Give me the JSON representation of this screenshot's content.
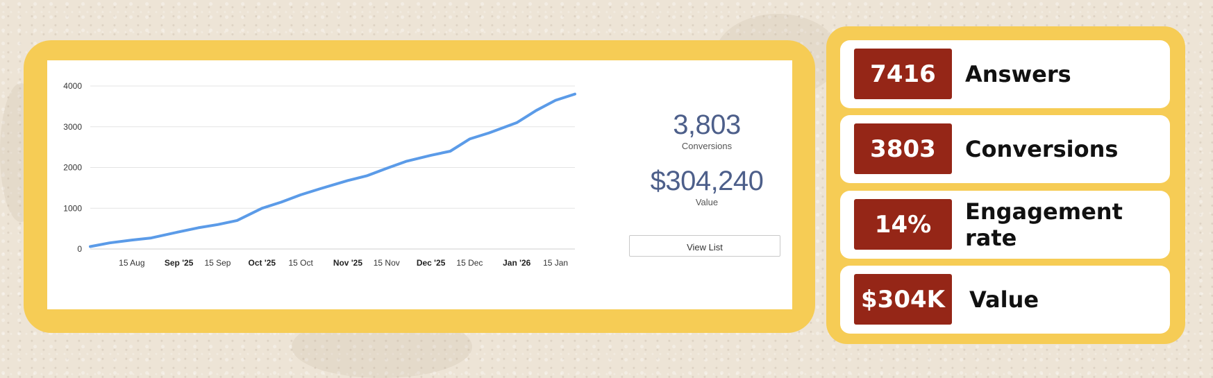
{
  "chart_data": {
    "type": "line",
    "title": "",
    "xlabel": "",
    "ylabel": "",
    "ylim": [
      0,
      4000
    ],
    "yticks": [
      "0",
      "1000",
      "2000",
      "3000",
      "4000"
    ],
    "xlim": [
      "2025-07-31",
      "2026-01-22"
    ],
    "xticks": [
      {
        "date": "2025-08-15",
        "label": "15 Aug",
        "bold": false
      },
      {
        "date": "2025-09-01",
        "label": "Sep '25",
        "bold": true
      },
      {
        "date": "2025-09-15",
        "label": "15 Sep",
        "bold": false
      },
      {
        "date": "2025-10-01",
        "label": "Oct '25",
        "bold": true
      },
      {
        "date": "2025-10-15",
        "label": "15 Oct",
        "bold": false
      },
      {
        "date": "2025-11-01",
        "label": "Nov '25",
        "bold": true
      },
      {
        "date": "2025-11-15",
        "label": "15 Nov",
        "bold": false
      },
      {
        "date": "2025-12-01",
        "label": "Dec '25",
        "bold": true
      },
      {
        "date": "2025-12-15",
        "label": "15 Dec",
        "bold": false
      },
      {
        "date": "2026-01-01",
        "label": "Jan '26",
        "bold": true
      },
      {
        "date": "2026-01-15",
        "label": "15 Jan",
        "bold": false
      }
    ],
    "grid": true,
    "series": [
      {
        "color": "#5b9be8",
        "points": [
          {
            "x": "2025-07-31",
            "y": 60
          },
          {
            "x": "2025-08-07",
            "y": 150
          },
          {
            "x": "2025-08-15",
            "y": 220
          },
          {
            "x": "2025-08-22",
            "y": 270
          },
          {
            "x": "2025-09-01",
            "y": 420
          },
          {
            "x": "2025-09-08",
            "y": 520
          },
          {
            "x": "2025-09-15",
            "y": 600
          },
          {
            "x": "2025-09-22",
            "y": 700
          },
          {
            "x": "2025-10-01",
            "y": 1000
          },
          {
            "x": "2025-10-08",
            "y": 1150
          },
          {
            "x": "2025-10-15",
            "y": 1330
          },
          {
            "x": "2025-10-22",
            "y": 1480
          },
          {
            "x": "2025-11-01",
            "y": 1680
          },
          {
            "x": "2025-11-08",
            "y": 1800
          },
          {
            "x": "2025-11-15",
            "y": 1980
          },
          {
            "x": "2025-11-22",
            "y": 2150
          },
          {
            "x": "2025-12-01",
            "y": 2300
          },
          {
            "x": "2025-12-08",
            "y": 2400
          },
          {
            "x": "2025-12-15",
            "y": 2700
          },
          {
            "x": "2025-12-22",
            "y": 2850
          },
          {
            "x": "2026-01-01",
            "y": 3100
          },
          {
            "x": "2026-01-08",
            "y": 3400
          },
          {
            "x": "2026-01-15",
            "y": 3650
          },
          {
            "x": "2026-01-22",
            "y": 3803
          }
        ]
      }
    ]
  },
  "summary": {
    "conversions_value": "3,803",
    "conversions_label": "Conversions",
    "value_value": "$304,240",
    "value_label": "Value",
    "view_list_label": "View List"
  },
  "stats": [
    {
      "value": "7416",
      "label": "Answers"
    },
    {
      "value": "3803",
      "label": "Conversions"
    },
    {
      "value": "14%",
      "label": "Engagement rate"
    },
    {
      "value": "$304K",
      "label": "Value"
    }
  ],
  "colors": {
    "panel": "#f6cc55",
    "badge": "#952617",
    "line": "#5b9be8",
    "summary_text": "#4d5f8a"
  }
}
